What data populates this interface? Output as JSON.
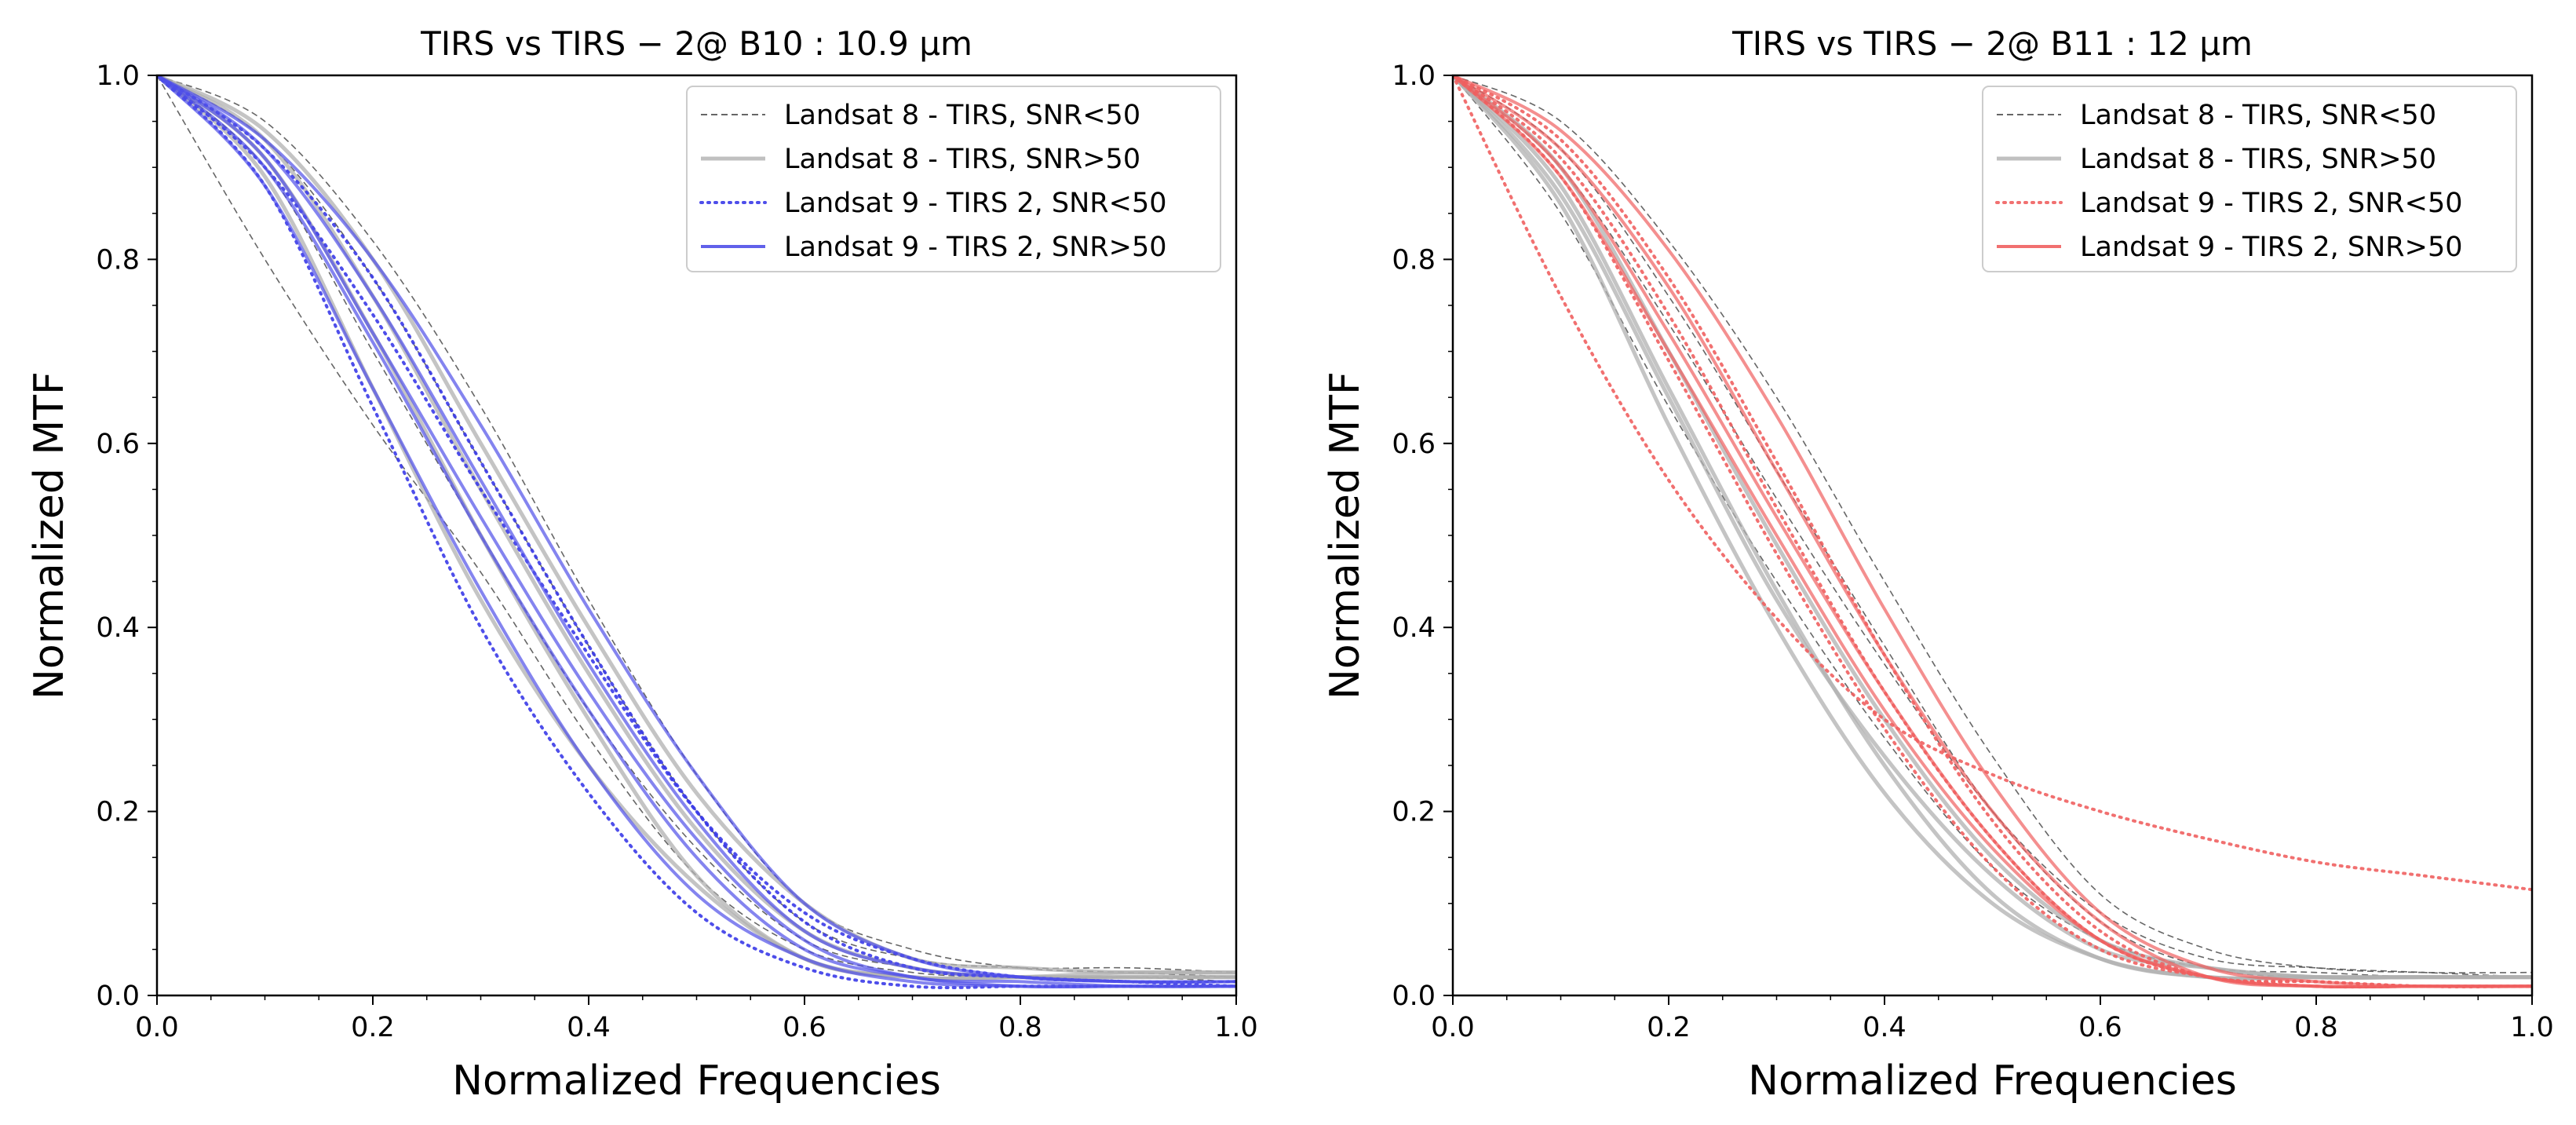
{
  "chart_data": [
    {
      "type": "line",
      "title": "TIRS vs TIRS − 2@ B10 : 10.9 μm",
      "xlabel": "Normalized Frequencies",
      "ylabel": "Normalized MTF",
      "xlim": [
        0,
        1
      ],
      "ylim": [
        0,
        1
      ],
      "xticks": [
        "0.0",
        "0.2",
        "0.4",
        "0.6",
        "0.8",
        "1.0"
      ],
      "yticks": [
        "0.0",
        "0.2",
        "0.4",
        "0.6",
        "0.8",
        "1.0"
      ],
      "grid": false,
      "legend_position": "top-right",
      "legend": [
        {
          "label": "Landsat 8 - TIRS, SNR<50",
          "color": "#555555",
          "style": "dashed"
        },
        {
          "label": "Landsat 8 - TIRS, SNR>50",
          "color": "#b0b0b0",
          "style": "solid"
        },
        {
          "label": "Landsat 9 - TIRS 2, SNR<50",
          "color": "#3b3be8",
          "style": "dotted"
        },
        {
          "label": "Landsat 9 - TIRS 2, SNR>50",
          "color": "#5050e8",
          "style": "solid"
        }
      ],
      "series": [
        {
          "name": "Landsat 8 - TIRS, SNR<50",
          "x": [
            0,
            0.1,
            0.2,
            0.3,
            0.4,
            0.5,
            0.6,
            0.7,
            0.8,
            0.9,
            1.0
          ],
          "values": [
            1.0,
            0.8,
            0.62,
            0.46,
            0.28,
            0.13,
            0.05,
            0.025,
            0.02,
            0.02,
            0.02
          ]
        },
        {
          "name": "Landsat 8 - TIRS, SNR<50",
          "x": [
            0,
            0.1,
            0.2,
            0.3,
            0.4,
            0.5,
            0.6,
            0.7,
            0.8,
            0.9,
            1.0
          ],
          "values": [
            1.0,
            0.93,
            0.78,
            0.58,
            0.38,
            0.2,
            0.08,
            0.04,
            0.03,
            0.03,
            0.025
          ]
        },
        {
          "name": "Landsat 8 - TIRS, SNR<50",
          "x": [
            0,
            0.1,
            0.2,
            0.3,
            0.4,
            0.5,
            0.6,
            0.7,
            0.8,
            0.9,
            1.0
          ],
          "values": [
            1.0,
            0.95,
            0.82,
            0.64,
            0.43,
            0.24,
            0.1,
            0.05,
            0.03,
            0.025,
            0.02
          ]
        },
        {
          "name": "Landsat 8 - TIRS, SNR<50",
          "x": [
            0,
            0.1,
            0.2,
            0.3,
            0.4,
            0.5,
            0.6,
            0.7,
            0.8,
            0.9,
            1.0
          ],
          "values": [
            1.0,
            0.9,
            0.7,
            0.5,
            0.31,
            0.16,
            0.06,
            0.03,
            0.02,
            0.02,
            0.015
          ]
        },
        {
          "name": "Landsat 8 - TIRS, SNR>50",
          "x": [
            0,
            0.1,
            0.2,
            0.3,
            0.4,
            0.5,
            0.6,
            0.7,
            0.8,
            0.9,
            1.0
          ],
          "values": [
            1.0,
            0.91,
            0.72,
            0.5,
            0.3,
            0.13,
            0.04,
            0.02,
            0.02,
            0.025,
            0.025
          ]
        },
        {
          "name": "Landsat 8 - TIRS, SNR>50",
          "x": [
            0,
            0.1,
            0.2,
            0.3,
            0.4,
            0.5,
            0.6,
            0.7,
            0.8,
            0.9,
            1.0
          ],
          "values": [
            1.0,
            0.93,
            0.76,
            0.55,
            0.35,
            0.18,
            0.07,
            0.03,
            0.02,
            0.02,
            0.02
          ]
        },
        {
          "name": "Landsat 8 - TIRS, SNR>50",
          "x": [
            0,
            0.1,
            0.2,
            0.3,
            0.4,
            0.5,
            0.6,
            0.7,
            0.8,
            0.9,
            1.0
          ],
          "values": [
            1.0,
            0.89,
            0.66,
            0.43,
            0.25,
            0.12,
            0.04,
            0.02,
            0.02,
            0.02,
            0.02
          ]
        },
        {
          "name": "Landsat 8 - TIRS, SNR>50",
          "x": [
            0,
            0.1,
            0.2,
            0.3,
            0.4,
            0.5,
            0.6,
            0.7,
            0.8,
            0.9,
            1.0
          ],
          "values": [
            1.0,
            0.94,
            0.8,
            0.6,
            0.4,
            0.22,
            0.1,
            0.04,
            0.03,
            0.025,
            0.025
          ]
        },
        {
          "name": "Landsat 9 - TIRS 2, SNR<50",
          "x": [
            0,
            0.1,
            0.2,
            0.3,
            0.4,
            0.5,
            0.6,
            0.7,
            0.8,
            0.9,
            1.0
          ],
          "values": [
            1.0,
            0.88,
            0.64,
            0.4,
            0.22,
            0.09,
            0.03,
            0.01,
            0.01,
            0.01,
            0.01
          ]
        },
        {
          "name": "Landsat 9 - TIRS 2, SNR<50",
          "x": [
            0,
            0.1,
            0.2,
            0.3,
            0.4,
            0.5,
            0.6,
            0.7,
            0.8,
            0.9,
            1.0
          ],
          "values": [
            1.0,
            0.9,
            0.74,
            0.55,
            0.37,
            0.2,
            0.09,
            0.04,
            0.02,
            0.015,
            0.01
          ]
        },
        {
          "name": "Landsat 9 - TIRS 2, SNR<50",
          "x": [
            0,
            0.1,
            0.2,
            0.3,
            0.4,
            0.5,
            0.6,
            0.7,
            0.8,
            0.9,
            1.0
          ],
          "values": [
            1.0,
            0.92,
            0.78,
            0.58,
            0.38,
            0.2,
            0.08,
            0.03,
            0.02,
            0.015,
            0.015
          ]
        },
        {
          "name": "Landsat 9 - TIRS 2, SNR>50",
          "x": [
            0,
            0.1,
            0.2,
            0.3,
            0.4,
            0.5,
            0.6,
            0.7,
            0.8,
            0.9,
            1.0
          ],
          "values": [
            1.0,
            0.93,
            0.8,
            0.62,
            0.42,
            0.24,
            0.1,
            0.04,
            0.02,
            0.015,
            0.015
          ]
        },
        {
          "name": "Landsat 9 - TIRS 2, SNR>50",
          "x": [
            0,
            0.1,
            0.2,
            0.3,
            0.4,
            0.5,
            0.6,
            0.7,
            0.8,
            0.9,
            1.0
          ],
          "values": [
            1.0,
            0.9,
            0.71,
            0.5,
            0.31,
            0.15,
            0.05,
            0.02,
            0.01,
            0.01,
            0.01
          ]
        },
        {
          "name": "Landsat 9 - TIRS 2, SNR>50",
          "x": [
            0,
            0.1,
            0.2,
            0.3,
            0.4,
            0.5,
            0.6,
            0.7,
            0.8,
            0.9,
            1.0
          ],
          "values": [
            1.0,
            0.88,
            0.66,
            0.44,
            0.25,
            0.11,
            0.04,
            0.015,
            0.01,
            0.01,
            0.01
          ]
        },
        {
          "name": "Landsat 9 - TIRS 2, SNR>50",
          "x": [
            0,
            0.1,
            0.2,
            0.3,
            0.4,
            0.5,
            0.6,
            0.7,
            0.8,
            0.9,
            1.0
          ],
          "values": [
            1.0,
            0.92,
            0.76,
            0.56,
            0.36,
            0.19,
            0.07,
            0.03,
            0.02,
            0.015,
            0.015
          ]
        },
        {
          "name": "Landsat 9 - TIRS 2, SNR>50",
          "x": [
            0,
            0.1,
            0.2,
            0.3,
            0.4,
            0.5,
            0.6,
            0.7,
            0.8,
            0.9,
            1.0
          ],
          "values": [
            1.0,
            0.91,
            0.72,
            0.52,
            0.33,
            0.17,
            0.06,
            0.02,
            0.015,
            0.01,
            0.01
          ]
        }
      ]
    },
    {
      "type": "line",
      "title": "TIRS vs TIRS − 2@ B11 : 12 μm",
      "xlabel": "Normalized Frequencies",
      "ylabel": "Normalized MTF",
      "xlim": [
        0,
        1
      ],
      "ylim": [
        0,
        1
      ],
      "xticks": [
        "0.0",
        "0.2",
        "0.4",
        "0.6",
        "0.8",
        "1.0"
      ],
      "yticks": [
        "0.0",
        "0.2",
        "0.4",
        "0.6",
        "0.8",
        "1.0"
      ],
      "grid": false,
      "legend_position": "top-right",
      "legend": [
        {
          "label": "Landsat 8 - TIRS, SNR<50",
          "color": "#555555",
          "style": "dashed"
        },
        {
          "label": "Landsat 8 - TIRS, SNR>50",
          "color": "#b0b0b0",
          "style": "solid"
        },
        {
          "label": "Landsat 9 - TIRS 2, SNR<50",
          "color": "#f06060",
          "style": "dotted"
        },
        {
          "label": "Landsat 9 - TIRS 2, SNR>50",
          "color": "#f06060",
          "style": "solid"
        }
      ],
      "series": [
        {
          "name": "Landsat 8 - TIRS, SNR<50",
          "x": [
            0,
            0.1,
            0.2,
            0.3,
            0.4,
            0.5,
            0.6,
            0.7,
            0.8,
            0.9,
            1.0
          ],
          "values": [
            1.0,
            0.92,
            0.76,
            0.57,
            0.38,
            0.2,
            0.08,
            0.03,
            0.02,
            0.02,
            0.02
          ]
        },
        {
          "name": "Landsat 8 - TIRS, SNR<50",
          "x": [
            0,
            0.1,
            0.2,
            0.3,
            0.4,
            0.5,
            0.6,
            0.7,
            0.8,
            0.9,
            1.0
          ],
          "values": [
            1.0,
            0.95,
            0.82,
            0.65,
            0.45,
            0.26,
            0.11,
            0.05,
            0.03,
            0.025,
            0.025
          ]
        },
        {
          "name": "Landsat 8 - TIRS, SNR<50",
          "x": [
            0,
            0.1,
            0.2,
            0.3,
            0.4,
            0.5,
            0.6,
            0.7,
            0.8,
            0.9,
            1.0
          ],
          "values": [
            1.0,
            0.85,
            0.64,
            0.45,
            0.28,
            0.14,
            0.06,
            0.03,
            0.025,
            0.02,
            0.02
          ]
        },
        {
          "name": "Landsat 8 - TIRS, SNR<50",
          "x": [
            0,
            0.1,
            0.2,
            0.3,
            0.4,
            0.5,
            0.6,
            0.7,
            0.8,
            0.9,
            1.0
          ],
          "values": [
            1.0,
            0.9,
            0.73,
            0.54,
            0.36,
            0.2,
            0.09,
            0.04,
            0.03,
            0.025,
            0.02
          ]
        },
        {
          "name": "Landsat 8 - TIRS, SNR>50",
          "x": [
            0,
            0.1,
            0.2,
            0.3,
            0.4,
            0.5,
            0.6,
            0.7,
            0.8,
            0.9,
            1.0
          ],
          "values": [
            1.0,
            0.88,
            0.66,
            0.44,
            0.25,
            0.11,
            0.04,
            0.02,
            0.02,
            0.02,
            0.02
          ]
        },
        {
          "name": "Landsat 8 - TIRS, SNR>50",
          "x": [
            0,
            0.1,
            0.2,
            0.3,
            0.4,
            0.5,
            0.6,
            0.7,
            0.8,
            0.9,
            1.0
          ],
          "values": [
            1.0,
            0.86,
            0.62,
            0.4,
            0.22,
            0.1,
            0.04,
            0.02,
            0.02,
            0.02,
            0.02
          ]
        },
        {
          "name": "Landsat 8 - TIRS, SNR>50",
          "x": [
            0,
            0.1,
            0.2,
            0.3,
            0.4,
            0.5,
            0.6,
            0.7,
            0.8,
            0.9,
            1.0
          ],
          "values": [
            1.0,
            0.9,
            0.7,
            0.49,
            0.3,
            0.15,
            0.06,
            0.03,
            0.02,
            0.02,
            0.02
          ]
        },
        {
          "name": "Landsat 8 - TIRS, SNR>50",
          "x": [
            0,
            0.1,
            0.2,
            0.3,
            0.4,
            0.5,
            0.6,
            0.7,
            0.8,
            0.9,
            1.0
          ],
          "values": [
            1.0,
            0.87,
            0.65,
            0.43,
            0.26,
            0.13,
            0.05,
            0.03,
            0.02,
            0.02,
            0.02
          ]
        },
        {
          "name": "Landsat 9 - TIRS 2, SNR<50",
          "x": [
            0,
            0.1,
            0.2,
            0.3,
            0.4,
            0.5,
            0.6,
            0.7,
            0.8,
            0.9,
            1.0
          ],
          "values": [
            1.0,
            0.76,
            0.56,
            0.41,
            0.3,
            0.24,
            0.2,
            0.17,
            0.145,
            0.13,
            0.115
          ]
        },
        {
          "name": "Landsat 9 - TIRS 2, SNR<50",
          "x": [
            0,
            0.1,
            0.2,
            0.3,
            0.4,
            0.5,
            0.6,
            0.7,
            0.8,
            0.9,
            1.0
          ],
          "values": [
            1.0,
            0.89,
            0.69,
            0.48,
            0.29,
            0.14,
            0.05,
            0.02,
            0.01,
            0.01,
            0.01
          ]
        },
        {
          "name": "Landsat 9 - TIRS 2, SNR<50",
          "x": [
            0,
            0.1,
            0.2,
            0.3,
            0.4,
            0.5,
            0.6,
            0.7,
            0.8,
            0.9,
            1.0
          ],
          "values": [
            1.0,
            0.91,
            0.74,
            0.53,
            0.33,
            0.17,
            0.06,
            0.02,
            0.015,
            0.01,
            0.01
          ]
        },
        {
          "name": "Landsat 9 - TIRS 2, SNR<50",
          "x": [
            0,
            0.1,
            0.2,
            0.3,
            0.4,
            0.5,
            0.6,
            0.7,
            0.8,
            0.9,
            1.0
          ],
          "values": [
            1.0,
            0.93,
            0.78,
            0.58,
            0.37,
            0.19,
            0.07,
            0.02,
            0.015,
            0.01,
            0.01
          ]
        },
        {
          "name": "Landsat 9 - TIRS 2, SNR>50",
          "x": [
            0,
            0.1,
            0.2,
            0.3,
            0.4,
            0.5,
            0.6,
            0.7,
            0.8,
            0.9,
            1.0
          ],
          "values": [
            1.0,
            0.94,
            0.81,
            0.63,
            0.42,
            0.23,
            0.09,
            0.03,
            0.015,
            0.01,
            0.01
          ]
        },
        {
          "name": "Landsat 9 - TIRS 2, SNR>50",
          "x": [
            0,
            0.1,
            0.2,
            0.3,
            0.4,
            0.5,
            0.6,
            0.7,
            0.8,
            0.9,
            1.0
          ],
          "values": [
            1.0,
            0.92,
            0.77,
            0.57,
            0.37,
            0.2,
            0.08,
            0.02,
            0.01,
            0.01,
            0.01
          ]
        },
        {
          "name": "Landsat 9 - TIRS 2, SNR>50",
          "x": [
            0,
            0.1,
            0.2,
            0.3,
            0.4,
            0.5,
            0.6,
            0.7,
            0.8,
            0.9,
            1.0
          ],
          "values": [
            1.0,
            0.9,
            0.72,
            0.52,
            0.33,
            0.17,
            0.06,
            0.02,
            0.01,
            0.01,
            0.01
          ]
        },
        {
          "name": "Landsat 9 - TIRS 2, SNR>50",
          "x": [
            0,
            0.1,
            0.2,
            0.3,
            0.4,
            0.5,
            0.6,
            0.7,
            0.8,
            0.9,
            1.0
          ],
          "values": [
            1.0,
            0.89,
            0.7,
            0.5,
            0.31,
            0.16,
            0.06,
            0.02,
            0.01,
            0.01,
            0.01
          ]
        }
      ]
    }
  ]
}
